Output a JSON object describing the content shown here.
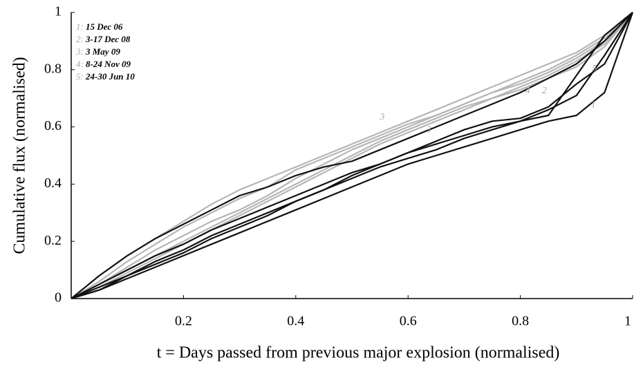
{
  "chart_data": {
    "type": "line",
    "xlabel": "t = Days passed from previous major explosion (normalised)",
    "ylabel": "Cumulative flux (normalised)",
    "x": [
      0,
      0.05,
      0.1,
      0.15,
      0.2,
      0.25,
      0.3,
      0.35,
      0.4,
      0.45,
      0.5,
      0.55,
      0.6,
      0.65,
      0.7,
      0.75,
      0.8,
      0.85,
      0.9,
      0.95,
      1
    ],
    "series": [
      {
        "color": "#b5b5b5",
        "values": [
          0,
          0.08,
          0.15,
          0.21,
          0.27,
          0.33,
          0.38,
          0.42,
          0.46,
          0.5,
          0.54,
          0.58,
          0.62,
          0.66,
          0.7,
          0.74,
          0.78,
          0.82,
          0.86,
          0.92,
          1
        ]
      },
      {
        "color": "#b5b5b5",
        "values": [
          0,
          0.06,
          0.13,
          0.19,
          0.25,
          0.3,
          0.35,
          0.39,
          0.45,
          0.49,
          0.53,
          0.57,
          0.61,
          0.64,
          0.68,
          0.72,
          0.76,
          0.8,
          0.85,
          0.91,
          1
        ]
      },
      {
        "color": "#b5b5b5",
        "values": [
          0,
          0.05,
          0.11,
          0.17,
          0.22,
          0.27,
          0.31,
          0.36,
          0.42,
          0.47,
          0.52,
          0.56,
          0.6,
          0.64,
          0.68,
          0.72,
          0.75,
          0.79,
          0.84,
          0.9,
          1
        ]
      },
      {
        "color": "#b5b5b5",
        "values": [
          0,
          0.04,
          0.09,
          0.14,
          0.19,
          0.24,
          0.29,
          0.34,
          0.39,
          0.44,
          0.49,
          0.54,
          0.58,
          0.62,
          0.66,
          0.7,
          0.73,
          0.77,
          0.81,
          0.88,
          1
        ]
      },
      {
        "color": "#b5b5b5",
        "values": [
          0,
          0.05,
          0.1,
          0.15,
          0.2,
          0.25,
          0.3,
          0.35,
          0.4,
          0.45,
          0.5,
          0.55,
          0.59,
          0.63,
          0.67,
          0.7,
          0.74,
          0.78,
          0.83,
          0.89,
          1
        ]
      },
      {
        "color": "#111111",
        "values": [
          0,
          0.03,
          0.07,
          0.11,
          0.15,
          0.19,
          0.23,
          0.27,
          0.31,
          0.35,
          0.39,
          0.43,
          0.47,
          0.5,
          0.53,
          0.56,
          0.59,
          0.62,
          0.64,
          0.72,
          1
        ]
      },
      {
        "color": "#111111",
        "values": [
          0,
          0.08,
          0.15,
          0.21,
          0.26,
          0.31,
          0.36,
          0.39,
          0.43,
          0.46,
          0.48,
          0.52,
          0.56,
          0.6,
          0.64,
          0.68,
          0.72,
          0.77,
          0.82,
          0.9,
          1
        ]
      },
      {
        "color": "#111111",
        "values": [
          0,
          0.04,
          0.08,
          0.13,
          0.17,
          0.22,
          0.26,
          0.3,
          0.34,
          0.38,
          0.43,
          0.47,
          0.51,
          0.54,
          0.57,
          0.6,
          0.62,
          0.66,
          0.71,
          0.85,
          1
        ]
      },
      {
        "color": "#111111",
        "values": [
          0,
          0.03,
          0.08,
          0.12,
          0.16,
          0.21,
          0.25,
          0.29,
          0.34,
          0.38,
          0.42,
          0.46,
          0.49,
          0.52,
          0.56,
          0.59,
          0.62,
          0.64,
          0.78,
          0.92,
          1
        ]
      },
      {
        "color": "#111111",
        "values": [
          0,
          0.05,
          0.1,
          0.15,
          0.19,
          0.24,
          0.28,
          0.32,
          0.36,
          0.4,
          0.44,
          0.47,
          0.51,
          0.55,
          0.59,
          0.62,
          0.63,
          0.67,
          0.75,
          0.82,
          1
        ]
      }
    ],
    "xlim": [
      0,
      1
    ],
    "ylim": [
      0,
      1
    ],
    "xticks": [
      0.2,
      0.4,
      0.6,
      0.8,
      1
    ],
    "yticks": [
      0,
      0.2,
      0.4,
      0.6,
      0.8,
      1
    ],
    "legend": [
      {
        "number": "1:",
        "label": "15 Dec 06"
      },
      {
        "number": "2:",
        "label": "3-17 Dec 08"
      },
      {
        "number": "3:",
        "label": "3 May 09"
      },
      {
        "number": "4:",
        "label": "8-24 Nov 09"
      },
      {
        "number": "5:",
        "label": "24-30 Jun 10"
      }
    ],
    "annotations": [
      {
        "text": "3",
        "x": 0.554,
        "y": 0.633
      },
      {
        "text": "3",
        "x": 0.637,
        "y": 0.589
      },
      {
        "text": "4",
        "x": 0.813,
        "y": 0.725
      },
      {
        "text": "2",
        "x": 0.843,
        "y": 0.725
      },
      {
        "text": "5",
        "x": 0.932,
        "y": 0.802
      },
      {
        "text": "1",
        "x": 0.93,
        "y": 0.676
      }
    ]
  }
}
